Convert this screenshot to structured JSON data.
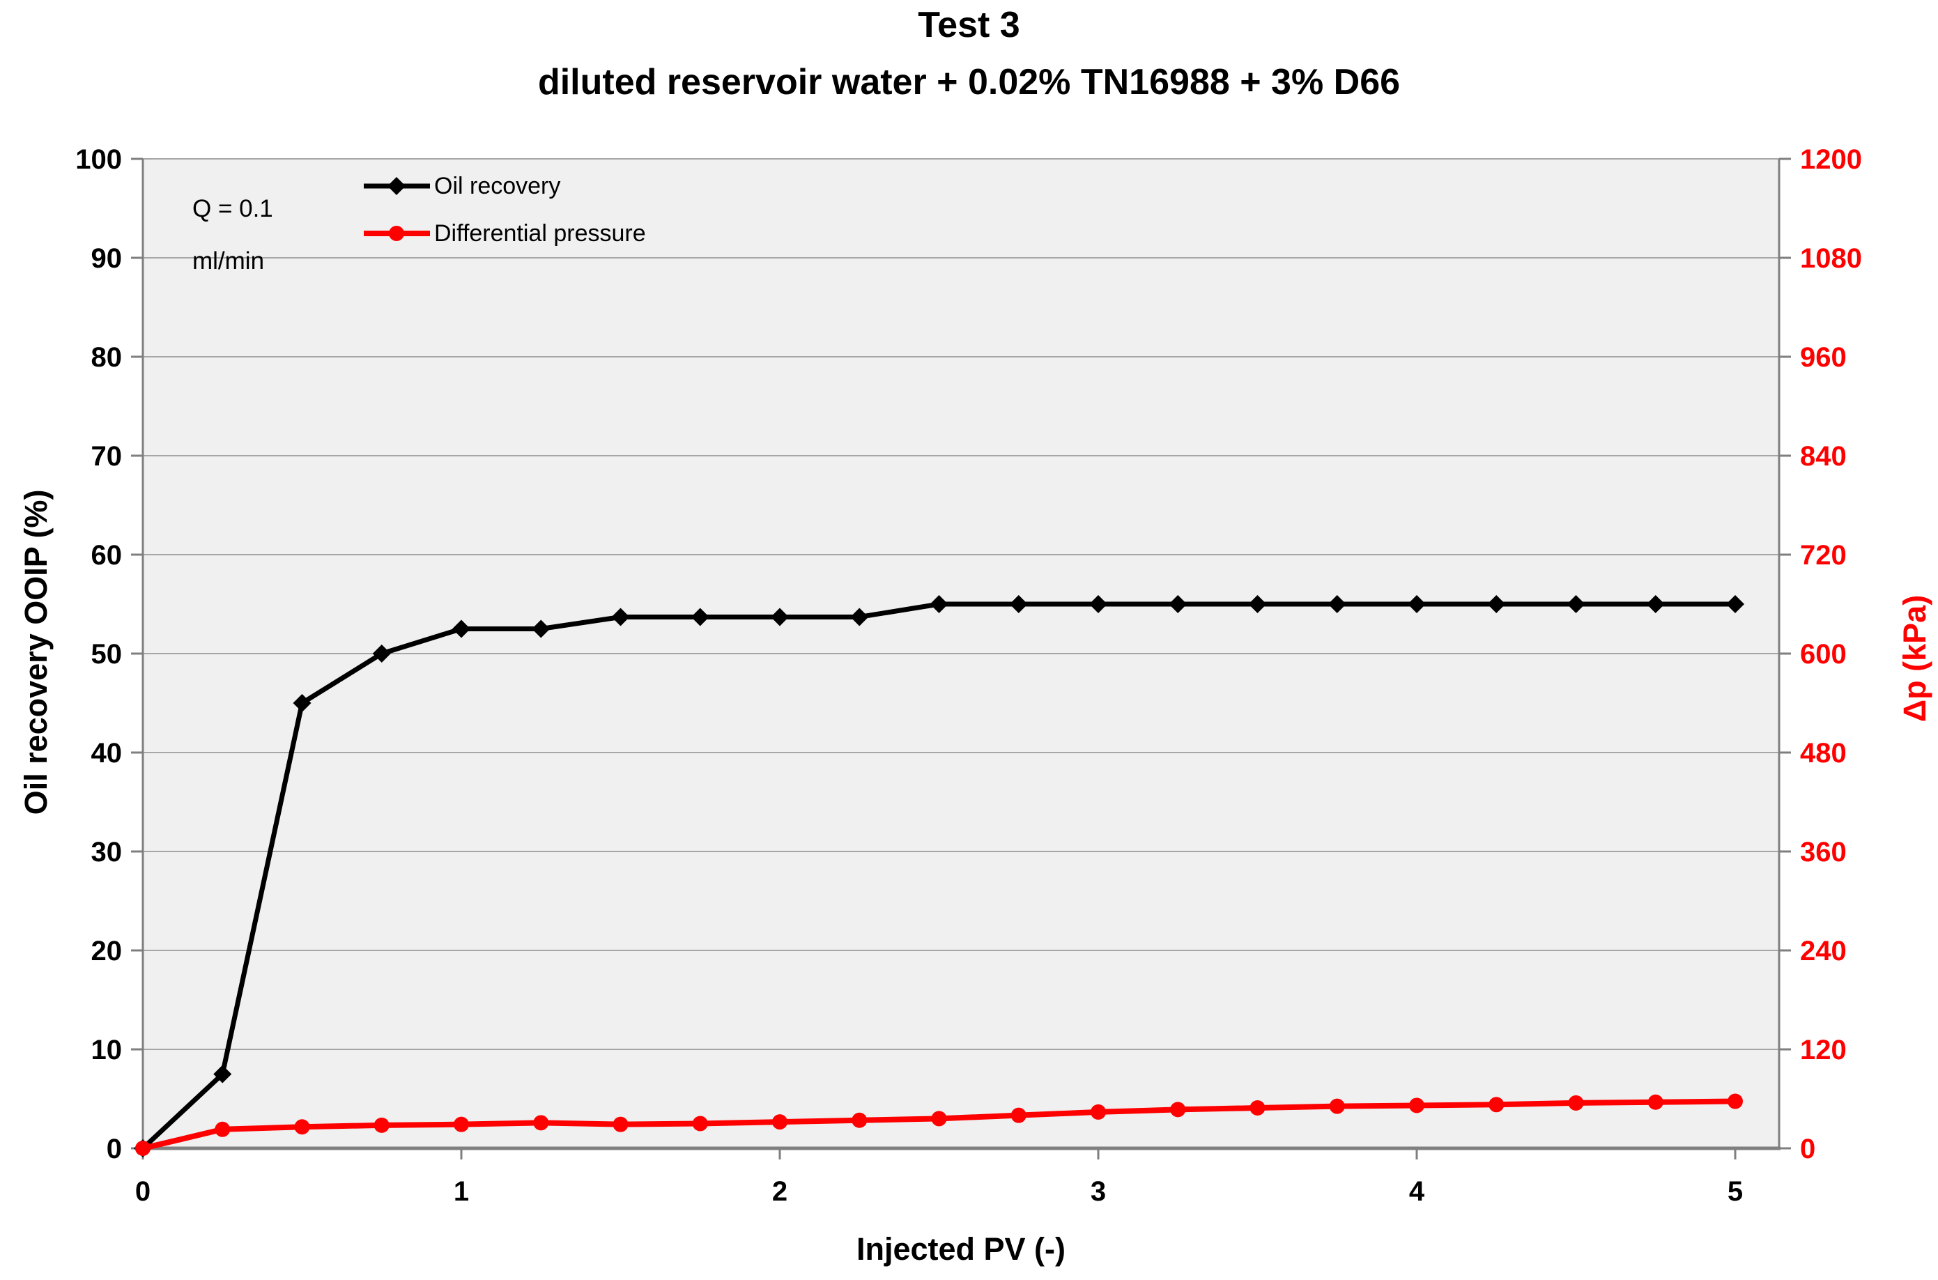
{
  "page": {
    "background": "#FFFFFF"
  },
  "chart_data": {
    "type": "line",
    "title": "Test 3",
    "subtitle": "diluted reservoir water + 0.02% TN16988 + 3% D66",
    "annotation_line1": "Q = 0.1",
    "annotation_line2": "ml/min",
    "xlabel": "Injected PV (-)",
    "ylabel_left": "Oil recovery OOIP (%)",
    "ylabel_right": "Δp (kPa)",
    "grid": true,
    "legend_position": "top-left-inside",
    "plot_background": "#F0F0F0",
    "gridline_color": "#A6A6A6",
    "axis_line_color": "#7F7F7F",
    "axes": {
      "x": {
        "min": 0,
        "max": 5,
        "tick_step": 1,
        "tick_labels": [
          "0",
          "1",
          "2",
          "3",
          "4",
          "5"
        ]
      },
      "y_left": {
        "min": 0,
        "max": 100,
        "tick_step": 10,
        "color": "#000000",
        "tick_labels": [
          "0",
          "10",
          "20",
          "30",
          "40",
          "50",
          "60",
          "70",
          "80",
          "90",
          "100"
        ]
      },
      "y_right": {
        "min": 0,
        "max": 1200,
        "tick_step": 120,
        "color": "#FF0000",
        "tick_labels": [
          "0",
          "120",
          "240",
          "360",
          "480",
          "600",
          "720",
          "840",
          "960",
          "1080",
          "1200"
        ]
      }
    },
    "x": [
      0,
      0.25,
      0.5,
      0.75,
      1.0,
      1.25,
      1.5,
      1.75,
      2.0,
      2.25,
      2.5,
      2.75,
      3.0,
      3.25,
      3.5,
      3.75,
      4.0,
      4.25,
      4.5,
      4.75,
      5.0
    ],
    "series": [
      {
        "name": "Oil recovery",
        "color": "#000000",
        "marker": "diamond",
        "axis": "left",
        "values": [
          0,
          7.5,
          45,
          50,
          52.5,
          52.5,
          53.7,
          53.7,
          53.7,
          53.7,
          55,
          55,
          55,
          55,
          55,
          55,
          55,
          55,
          55,
          55,
          55
        ]
      },
      {
        "name": "Differential pressure",
        "color": "#FF0000",
        "marker": "circle",
        "axis": "right",
        "values": [
          0,
          23,
          26,
          28,
          29,
          31,
          29,
          30,
          32,
          34,
          36,
          40,
          44,
          47,
          49,
          51,
          52,
          53,
          55,
          56,
          57
        ]
      }
    ]
  }
}
